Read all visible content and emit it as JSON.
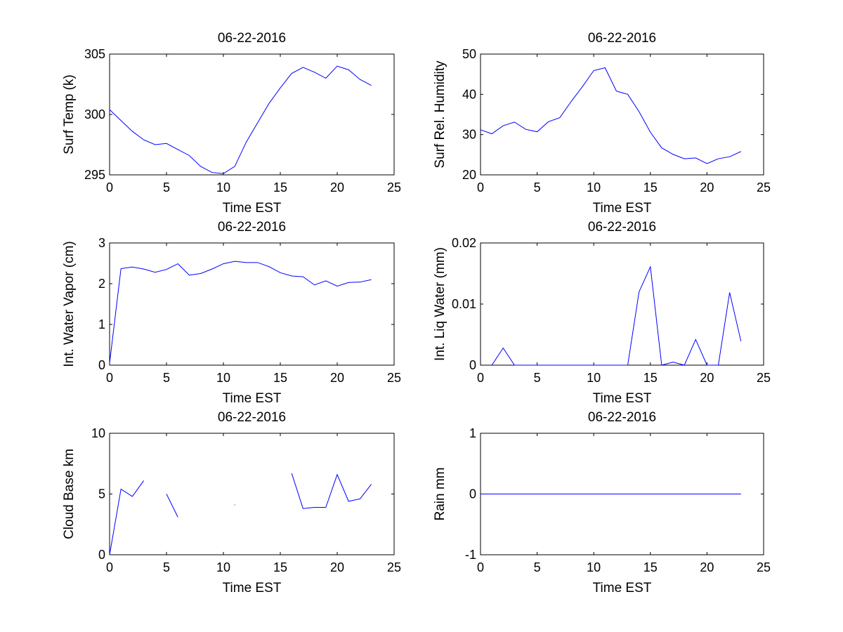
{
  "chart_data": [
    {
      "type": "line",
      "title": "06-22-2016",
      "xlabel": "Time EST",
      "ylabel": "Surf Temp (k)",
      "xlim": [
        0,
        25
      ],
      "ylim": [
        295,
        305
      ],
      "xticks": [
        0,
        5,
        10,
        15,
        20,
        25
      ],
      "yticks": [
        295,
        300,
        305
      ],
      "x": [
        0,
        1,
        2,
        3,
        4,
        5,
        6,
        7,
        8,
        9,
        10,
        11,
        12,
        13,
        14,
        15,
        16,
        17,
        18,
        19,
        20,
        21,
        22,
        23
      ],
      "series": [
        {
          "color": "#0000ff",
          "values": [
            300.4,
            299.5,
            298.6,
            297.9,
            297.5,
            297.6,
            297.1,
            296.6,
            295.7,
            295.2,
            295.1,
            295.7,
            297.7,
            299.3,
            300.9,
            302.2,
            303.4,
            303.9,
            303.5,
            303.0,
            304.0,
            303.7,
            302.9,
            302.4
          ]
        }
      ]
    },
    {
      "type": "line",
      "title": "06-22-2016",
      "xlabel": "Time EST",
      "ylabel": "Surf Rel. Humidity",
      "xlim": [
        0,
        25
      ],
      "ylim": [
        20,
        50
      ],
      "xticks": [
        0,
        5,
        10,
        15,
        20,
        25
      ],
      "yticks": [
        20,
        30,
        40,
        50
      ],
      "x": [
        0,
        1,
        2,
        3,
        4,
        5,
        6,
        7,
        8,
        9,
        10,
        11,
        12,
        13,
        14,
        15,
        16,
        17,
        18,
        19,
        20,
        21,
        22,
        23
      ],
      "series": [
        {
          "color": "#0000ff",
          "values": [
            31.2,
            30.2,
            32.2,
            33.1,
            31.3,
            30.7,
            33.2,
            34.2,
            38.2,
            41.9,
            45.9,
            46.6,
            40.8,
            40.0,
            35.7,
            30.6,
            26.7,
            25.1,
            24.0,
            24.2,
            22.8,
            24.0,
            24.5,
            25.8
          ]
        }
      ]
    },
    {
      "type": "line",
      "title": "06-22-2016",
      "xlabel": "Time EST",
      "ylabel": "Int. Water Vapor (cm)",
      "xlim": [
        0,
        25
      ],
      "ylim": [
        0,
        3
      ],
      "xticks": [
        0,
        5,
        10,
        15,
        20,
        25
      ],
      "yticks": [
        0,
        1,
        2,
        3
      ],
      "x": [
        0,
        1,
        2,
        3,
        4,
        5,
        6,
        7,
        8,
        9,
        10,
        11,
        12,
        13,
        14,
        15,
        16,
        17,
        18,
        19,
        20,
        21,
        22,
        23
      ],
      "series": [
        {
          "color": "#0000ff",
          "values": [
            0.05,
            2.37,
            2.41,
            2.36,
            2.28,
            2.35,
            2.49,
            2.21,
            2.25,
            2.36,
            2.49,
            2.55,
            2.52,
            2.52,
            2.42,
            2.27,
            2.19,
            2.17,
            1.97,
            2.07,
            1.94,
            2.03,
            2.04,
            2.1
          ]
        }
      ]
    },
    {
      "type": "line",
      "title": "06-22-2016",
      "xlabel": "Time EST",
      "ylabel": "Int. Liq Water (mm)",
      "xlim": [
        0,
        25
      ],
      "ylim": [
        0,
        0.02
      ],
      "xticks": [
        0,
        5,
        10,
        15,
        20,
        25
      ],
      "yticks": [
        0,
        0.01,
        0.02
      ],
      "x": [
        0,
        1,
        2,
        3,
        4,
        5,
        6,
        7,
        8,
        9,
        10,
        11,
        12,
        13,
        14,
        15,
        16,
        17,
        18,
        19,
        20,
        21,
        22,
        23
      ],
      "series": [
        {
          "color": "#0000ff",
          "values": [
            null,
            0,
            0.0028,
            0,
            0,
            0,
            0,
            0,
            0,
            0,
            0,
            0,
            0,
            0,
            0.012,
            0.0161,
            0,
            0.0005,
            0,
            0.0042,
            0,
            0,
            0.0119,
            0.0039
          ]
        }
      ]
    },
    {
      "type": "line",
      "title": "06-22-2016",
      "xlabel": "Time EST",
      "ylabel": "Cloud Base km",
      "xlim": [
        0,
        25
      ],
      "ylim": [
        0,
        10
      ],
      "xticks": [
        0,
        5,
        10,
        15,
        20,
        25
      ],
      "yticks": [
        0,
        5,
        10
      ],
      "x": [
        0,
        1,
        2,
        3,
        4,
        5,
        6,
        7,
        8,
        9,
        10,
        11,
        12,
        13,
        14,
        15,
        16,
        17,
        18,
        19,
        20,
        21,
        22,
        23
      ],
      "series": [
        {
          "color": "#0000ff",
          "values": [
            0,
            5.4,
            4.8,
            6.1,
            null,
            5.0,
            3.1,
            null,
            null,
            null,
            null,
            4.1,
            null,
            null,
            null,
            null,
            6.7,
            3.8,
            3.9,
            3.9,
            6.6,
            4.4,
            4.6,
            5.8
          ]
        }
      ]
    },
    {
      "type": "line",
      "title": "06-22-2016",
      "xlabel": "Time EST",
      "ylabel": "Rain mm",
      "xlim": [
        0,
        25
      ],
      "ylim": [
        -1,
        1
      ],
      "xticks": [
        0,
        5,
        10,
        15,
        20,
        25
      ],
      "yticks": [
        -1,
        0,
        1
      ],
      "x": [
        0,
        1,
        2,
        3,
        4,
        5,
        6,
        7,
        8,
        9,
        10,
        11,
        12,
        13,
        14,
        15,
        16,
        17,
        18,
        19,
        20,
        21,
        22,
        23
      ],
      "series": [
        {
          "color": "#0000ff",
          "values": [
            0,
            0,
            0,
            0,
            0,
            0,
            0,
            0,
            0,
            0,
            0,
            0,
            0,
            0,
            0,
            0,
            0,
            0,
            0,
            0,
            0,
            0,
            0,
            0
          ]
        }
      ]
    }
  ]
}
